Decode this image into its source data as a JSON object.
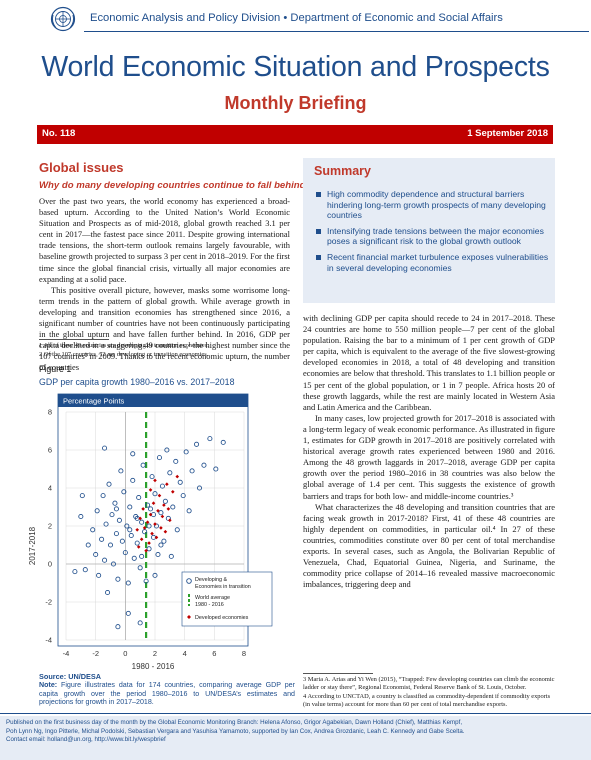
{
  "header": {
    "division": "Economic Analysis and Policy Division • Department of Economic and Social Affairs",
    "title": "World Economic Situation and Prospects",
    "subtitle": "Monthly Briefing",
    "issue": "No. 118",
    "date": "1 September 2018",
    "logo_icon": "un-emblem-icon"
  },
  "section": {
    "heading": "Global issues",
    "subheading": "Why do many developing countries continue to fall behind?"
  },
  "left_paragraphs": [
    "Over the past two years, the world economy has experienced a broad-based upturn. According to the United Nation’s World Economic Situation and Prospects as of mid-2018, global growth reached 3.1 per cent in 2017—the fastest pace since 2011. Despite growing international trade tensions, the short-term outlook remains largely favourable, with baseline growth projected to surpass 3 per cent in 2018–2019. For the first time since the global financial crisis, virtually all major economies are expanding at a solid pace.",
    "This positive overall picture, however, masks some worrisome long-term trends in the pattern of global growth. While average growth in developing and transition economies has strengthened since 2016, a significant number of countries have not been continuously participating in the global upturn and have fallen further behind. In 2016, GDP per capita declined in a staggering 49 countries,¹ the highest number since the 107 countries² in 2009. Thanks to the recent economic upturn, the number of countries"
  ],
  "footnotes_left": [
    "1   All of these 49 countries are developing or transition economies.",
    "2   Of the 107 countries, 72 are developing or transition economies."
  ],
  "summary": {
    "title": "Summary",
    "items": [
      "High commodity dependence and structural barriers hindering long-term growth prospects of many developing countries",
      "Intensifying trade tensions between the major economies poses a significant risk to the global growth outlook",
      "Recent financial market turbulence exposes vulnerabilities in several developing economies"
    ]
  },
  "right_paragraphs": [
    "with declining GDP per capita should recede to 24 in 2017–2018. These 24 countries are home to 550 million people—7 per cent of the global population. Raising the bar to a minimum of 1 per cent growth of GDP per capita, which is equivalent to the average of the five slowest-growing developed economies in 2018, a total of 48 developing and transition economies are below that threshold. This translates to 1.1 billion people or 15 per cent of the global population, or 1 in 7 people. Africa hosts 20 of these growth laggards, while the rest are mainly located in Western Asia and Latin America and the Caribbean.",
    "In many cases, low projected growth for 2017–2018 is associated with a long-term legacy of weak economic performance. As illustrated in figure 1, estimates for GDP growth in 2017–2018 are positively correlated with historical average growth rates experienced between 1980 and 2016. Among the 48 growth laggards in 2017–2018, average GDP per capita growth over the period 1980–2016 in 38 countries was also below the global average of 1.4 per cent. This suggests the existence of growth barriers and traps for both low- and middle-income countries.³",
    "What characterizes the 48 developing and transition countries that are facing weak growth in 2017-2018? First, 41 of these 48 countries are highly dependent on commodities, in particular oil.⁴ In 27 of these countries, commodities constitute over 80 per cent of total merchandise exports. In several cases, such as Angola, the Bolivarian Republic of Venezuela, Chad, Equatorial Guinea, Nigeria, and Suriname, the commodity price collapse of 2014–16 revealed massive macroeconomic imbalances, triggering deep and"
  ],
  "footnotes_right": [
    "3   Maria A. Arias and Yi Wen (2015), “Trapped: Few developing countries can climb the economic ladder or stay there”, Regional Economist, Federal Reserve Bank of St. Louis, October.",
    "4   According to UNCTAD, a country is classified as commodity-dependent if commodity exports (in value terms) account for more than 60 per cent of total merchandise exports."
  ],
  "figure": {
    "label": "Figure 1",
    "title": "GDP per capita growth 1980–2016 vs. 2017–2018",
    "source": "Source: UN/DESA",
    "note_label": "Note:",
    "note": " Figure illustrates data for 174 countries, comparing average GDP per capita growth over the period 1980–2016 to UN/DESA’s estimates and projections for growth in 2017–2018."
  },
  "chart_data": {
    "type": "scatter",
    "panel_title": "Percentage Points",
    "xlabel": "1980 - 2016",
    "ylabel": "2017-2018",
    "xlim": [
      -4,
      8
    ],
    "ylim": [
      -4,
      8
    ],
    "x_ticks": [
      "-4",
      "-2",
      "0",
      "2",
      "4",
      "6",
      "8"
    ],
    "y_ticks": [
      "-4",
      "-2",
      "0",
      "2",
      "4",
      "6",
      "8"
    ],
    "reference_line": {
      "name": "World average 1980 - 2016",
      "x": 1.4,
      "color": "#2ca02c",
      "style": "dashed"
    },
    "legend": {
      "placement": "bottom-right",
      "entries": [
        "Developing & Economies in transition",
        "World average 1980 - 2016",
        "Developed economies"
      ]
    },
    "series": [
      {
        "name": "Developing & Economies in transition",
        "marker": "hollow-circle",
        "color": "#1f4e8c",
        "points": [
          [
            -3.0,
            2.5
          ],
          [
            -2.7,
            -0.3
          ],
          [
            -2.5,
            1.0
          ],
          [
            -2.2,
            1.8
          ],
          [
            -2.0,
            0.5
          ],
          [
            -1.9,
            2.8
          ],
          [
            -1.8,
            -0.6
          ],
          [
            -1.6,
            1.3
          ],
          [
            -1.5,
            3.6
          ],
          [
            -1.4,
            0.2
          ],
          [
            -1.3,
            2.1
          ],
          [
            -1.2,
            -1.5
          ],
          [
            -1.1,
            4.2
          ],
          [
            -1.0,
            1.0
          ],
          [
            -0.9,
            2.6
          ],
          [
            -0.8,
            0.0
          ],
          [
            -0.7,
            3.2
          ],
          [
            -0.6,
            1.6
          ],
          [
            -0.5,
            -0.8
          ],
          [
            -0.4,
            2.3
          ],
          [
            -0.3,
            4.9
          ],
          [
            -0.2,
            1.2
          ],
          [
            -0.1,
            3.8
          ],
          [
            0.0,
            0.6
          ],
          [
            0.1,
            2.0
          ],
          [
            0.2,
            -1.0
          ],
          [
            0.3,
            3.0
          ],
          [
            0.4,
            1.5
          ],
          [
            0.5,
            4.4
          ],
          [
            0.6,
            0.3
          ],
          [
            0.7,
            2.5
          ],
          [
            0.8,
            1.1
          ],
          [
            0.9,
            3.5
          ],
          [
            1.0,
            -0.2
          ],
          [
            1.1,
            2.2
          ],
          [
            1.2,
            5.2
          ],
          [
            1.3,
            1.7
          ],
          [
            1.5,
            3.1
          ],
          [
            1.6,
            0.8
          ],
          [
            1.7,
            2.9
          ],
          [
            1.8,
            4.6
          ],
          [
            1.9,
            1.4
          ],
          [
            2.0,
            3.7
          ],
          [
            2.1,
            2.0
          ],
          [
            2.2,
            0.5
          ],
          [
            2.3,
            5.6
          ],
          [
            2.4,
            2.7
          ],
          [
            2.5,
            4.1
          ],
          [
            2.6,
            1.2
          ],
          [
            2.7,
            3.3
          ],
          [
            2.8,
            6.0
          ],
          [
            2.9,
            2.4
          ],
          [
            3.0,
            4.8
          ],
          [
            3.2,
            3.0
          ],
          [
            3.4,
            5.4
          ],
          [
            3.5,
            1.8
          ],
          [
            3.7,
            4.3
          ],
          [
            3.9,
            3.6
          ],
          [
            4.1,
            5.9
          ],
          [
            4.3,
            2.8
          ],
          [
            4.5,
            4.9
          ],
          [
            4.8,
            6.3
          ],
          [
            5.0,
            4.0
          ],
          [
            5.3,
            5.2
          ],
          [
            5.7,
            6.6
          ],
          [
            6.1,
            5.0
          ],
          [
            6.6,
            6.4
          ],
          [
            -3.4,
            -0.4
          ],
          [
            -2.9,
            3.6
          ],
          [
            0.2,
            -2.6
          ],
          [
            -0.5,
            -3.3
          ],
          [
            1.0,
            -3.1
          ],
          [
            0.5,
            5.8
          ],
          [
            1.4,
            -0.9
          ],
          [
            2.0,
            -0.6
          ],
          [
            3.1,
            0.4
          ],
          [
            -1.4,
            6.1
          ],
          [
            -0.6,
            2.9
          ],
          [
            0.3,
            1.8
          ],
          [
            0.8,
            2.4
          ],
          [
            1.1,
            0.4
          ],
          [
            1.6,
            2.0
          ],
          [
            2.4,
            1.0
          ],
          [
            1.9,
            2.6
          ]
        ]
      },
      {
        "name": "Developed economies",
        "marker": "filled-diamond",
        "color": "#c00000",
        "points": [
          [
            0.8,
            1.8
          ],
          [
            1.0,
            2.4
          ],
          [
            1.1,
            1.3
          ],
          [
            1.2,
            2.9
          ],
          [
            1.3,
            1.9
          ],
          [
            1.5,
            2.2
          ],
          [
            1.6,
            1.1
          ],
          [
            1.7,
            2.6
          ],
          [
            1.8,
            1.6
          ],
          [
            1.9,
            3.2
          ],
          [
            2.0,
            2.1
          ],
          [
            2.1,
            1.4
          ],
          [
            2.2,
            2.8
          ],
          [
            2.3,
            3.6
          ],
          [
            2.4,
            1.9
          ],
          [
            2.5,
            2.5
          ],
          [
            2.6,
            3.1
          ],
          [
            2.7,
            1.7
          ],
          [
            2.8,
            4.2
          ],
          [
            3.0,
            2.3
          ],
          [
            3.2,
            3.8
          ],
          [
            3.5,
            4.6
          ],
          [
            1.4,
            0.7
          ],
          [
            0.9,
            0.9
          ],
          [
            2.0,
            4.4
          ],
          [
            1.7,
            3.9
          ],
          [
            2.9,
            2.9
          ]
        ]
      }
    ]
  },
  "footer": {
    "line1": "Published on the first business day of the month by the Global Economic Monitoring Branch: Helena Afonso, Grigor Agabekian, Dawn Holland (Chief), Matthias Kempf,",
    "line2": "Poh Lynn Ng, Ingo Pitterle, Michal Podolski, Sebastian Vergara and Yasuhisa Yamamoto, supported by Ian Cox, Andrea Grozdanic, Leah C. Kennedy and Gabe Scelta.",
    "line3": "Contact email: holland@un.org, http://www.bit.ly/wespbrief"
  }
}
